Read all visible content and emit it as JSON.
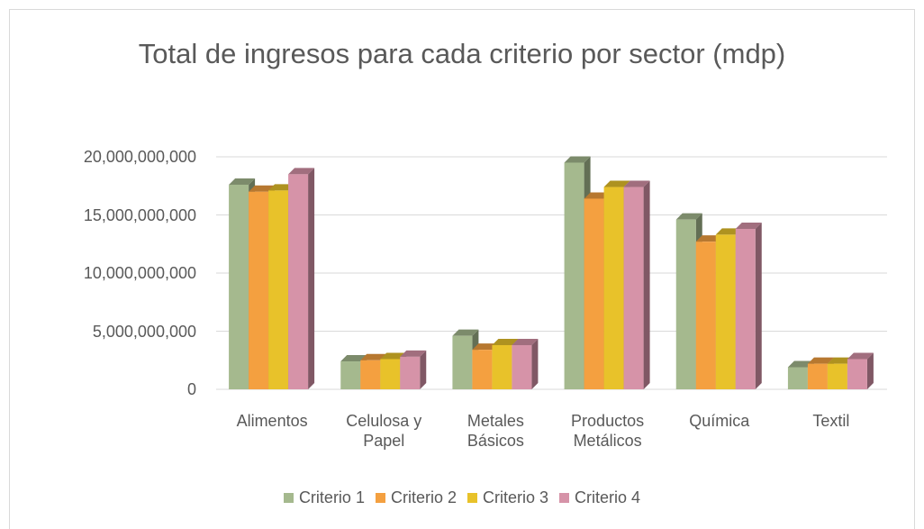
{
  "chart_data": {
    "type": "bar",
    "title": "Total de ingresos para cada criterio por sector (mdp)",
    "categories": [
      "Alimentos",
      "Celulosa y Papel",
      "Metales Básicos",
      "Productos Metálicos",
      "Química",
      "Textil"
    ],
    "series": [
      {
        "name": "Criterio 1",
        "color": "#a5b98e",
        "values": [
          17600000000,
          2400000000,
          4600000000,
          19500000000,
          14600000000,
          1900000000
        ]
      },
      {
        "name": "Criterio 2",
        "color": "#f4a040",
        "values": [
          17000000000,
          2500000000,
          3400000000,
          16400000000,
          12700000000,
          2200000000
        ]
      },
      {
        "name": "Criterio 3",
        "color": "#e8c22a",
        "values": [
          17100000000,
          2600000000,
          3800000000,
          17400000000,
          13300000000,
          2200000000
        ]
      },
      {
        "name": "Criterio 4",
        "color": "#d693a8",
        "values": [
          18500000000,
          2800000000,
          3800000000,
          17400000000,
          13800000000,
          2600000000
        ]
      }
    ],
    "ylim": [
      0,
      20000000000
    ],
    "yticks": [
      0,
      {
        "value": 5000000000,
        "label": "5,000,000,000"
      },
      {
        "value": 10000000000,
        "label": "10,000,000,000"
      },
      {
        "value": 15000000000,
        "label": "15,000,000,000"
      },
      {
        "value": 20000000000,
        "label": "20,000,000,000"
      }
    ],
    "grid": true,
    "legend": "bottom"
  }
}
